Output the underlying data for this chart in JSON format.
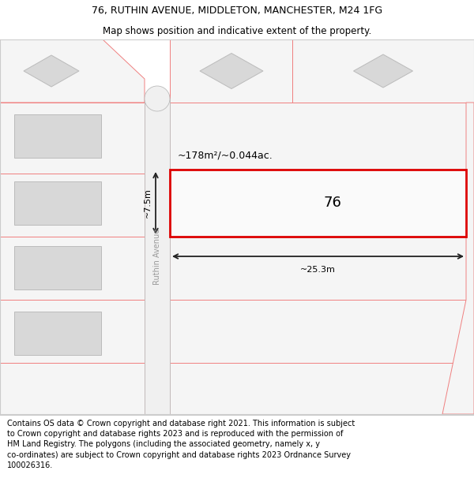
{
  "title_line1": "76, RUTHIN AVENUE, MIDDLETON, MANCHESTER, M24 1FG",
  "title_line2": "Map shows position and indicative extent of the property.",
  "footer_text": "Contains OS data © Crown copyright and database right 2021. This information is subject\nto Crown copyright and database rights 2023 and is reproduced with the permission of\nHM Land Registry. The polygons (including the associated geometry, namely x, y\nco-ordinates) are subject to Crown copyright and database rights 2023 Ordnance Survey\n100026316.",
  "background_color": "#ffffff",
  "map_bg": "#ffffff",
  "boundary_color": "#f08080",
  "building_fill": "#d8d8d8",
  "building_outline": "#bbbbbb",
  "road_fill": "#f0f0f0",
  "road_outline": "#bbbbbb",
  "plot_outline_color": "#dd0000",
  "dim_color": "#222222",
  "street_label": "Ruthin Avenue",
  "property_number": "76",
  "area_label": "~178m²/~0.044ac.",
  "width_label": "~25.3m",
  "height_label": "~7.5m",
  "title_fontsize": 9,
  "subtitle_fontsize": 8.5,
  "footer_fontsize": 7,
  "map_label_fontsize": 8,
  "prop_num_fontsize": 13,
  "street_fontsize": 7
}
